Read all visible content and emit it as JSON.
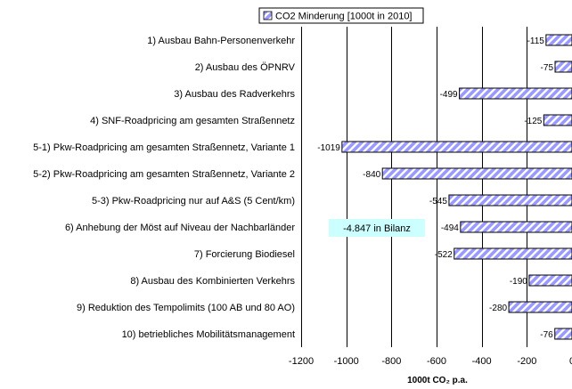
{
  "chart_data": {
    "type": "bar",
    "orientation": "horizontal",
    "categories": [
      "1) Ausbau Bahn-Personenverkehr",
      "2) Ausbau des ÖPNRV",
      "3) Ausbau des Radverkehrs",
      "4) SNF-Roadpricing am gesamten Straßennetz",
      "5-1) Pkw-Roadpricing am gesamten Straßennetz, Variante 1",
      "5-2) Pkw-Roadpricing am gesamten Straßennetz, Variante 2",
      "5-3) Pkw-Roadpricing nur auf A&S (5 Cent/km)",
      "6) Anhebung der Möst auf Niveau der Nachbarländer",
      "7) Forcierung Biodiesel",
      "8) Ausbau des Kombinierten Verkehrs",
      "9) Reduktion des Tempolimits (100 AB und 80 AO)",
      "10) betriebliches Mobilitätsmanagement"
    ],
    "series": [
      {
        "name": "CO2 Minderung [1000t in 2010]",
        "values": [
          -115,
          -75,
          -499,
          -125,
          -1019,
          -840,
          -545,
          -494,
          -522,
          -190,
          -280,
          -76
        ],
        "labels": [
          "-115",
          "-75",
          "-499",
          "-125",
          "-1019",
          "-840",
          "-545",
          "-494",
          "-522",
          "-190",
          "-280",
          "-76"
        ]
      }
    ],
    "xlabel": "1000t CO₂ p.a.",
    "xlim": [
      -1200,
      0
    ],
    "xticks": [
      -1200,
      -1000,
      -800,
      -600,
      -400,
      -200,
      0
    ],
    "xtick_labels": [
      "-1200",
      "-1000",
      "-800",
      "-600",
      "-400",
      "-200",
      "0"
    ],
    "grid": "vertical major gridlines",
    "legend": "top",
    "annotation": {
      "text": "-4.847 in Bilanz"
    },
    "colors": {
      "bar_fill": "#9999ff",
      "bar_hatch": "#ffffff",
      "bar_border": "#000000",
      "annotation_bg": "#ccffff"
    }
  }
}
